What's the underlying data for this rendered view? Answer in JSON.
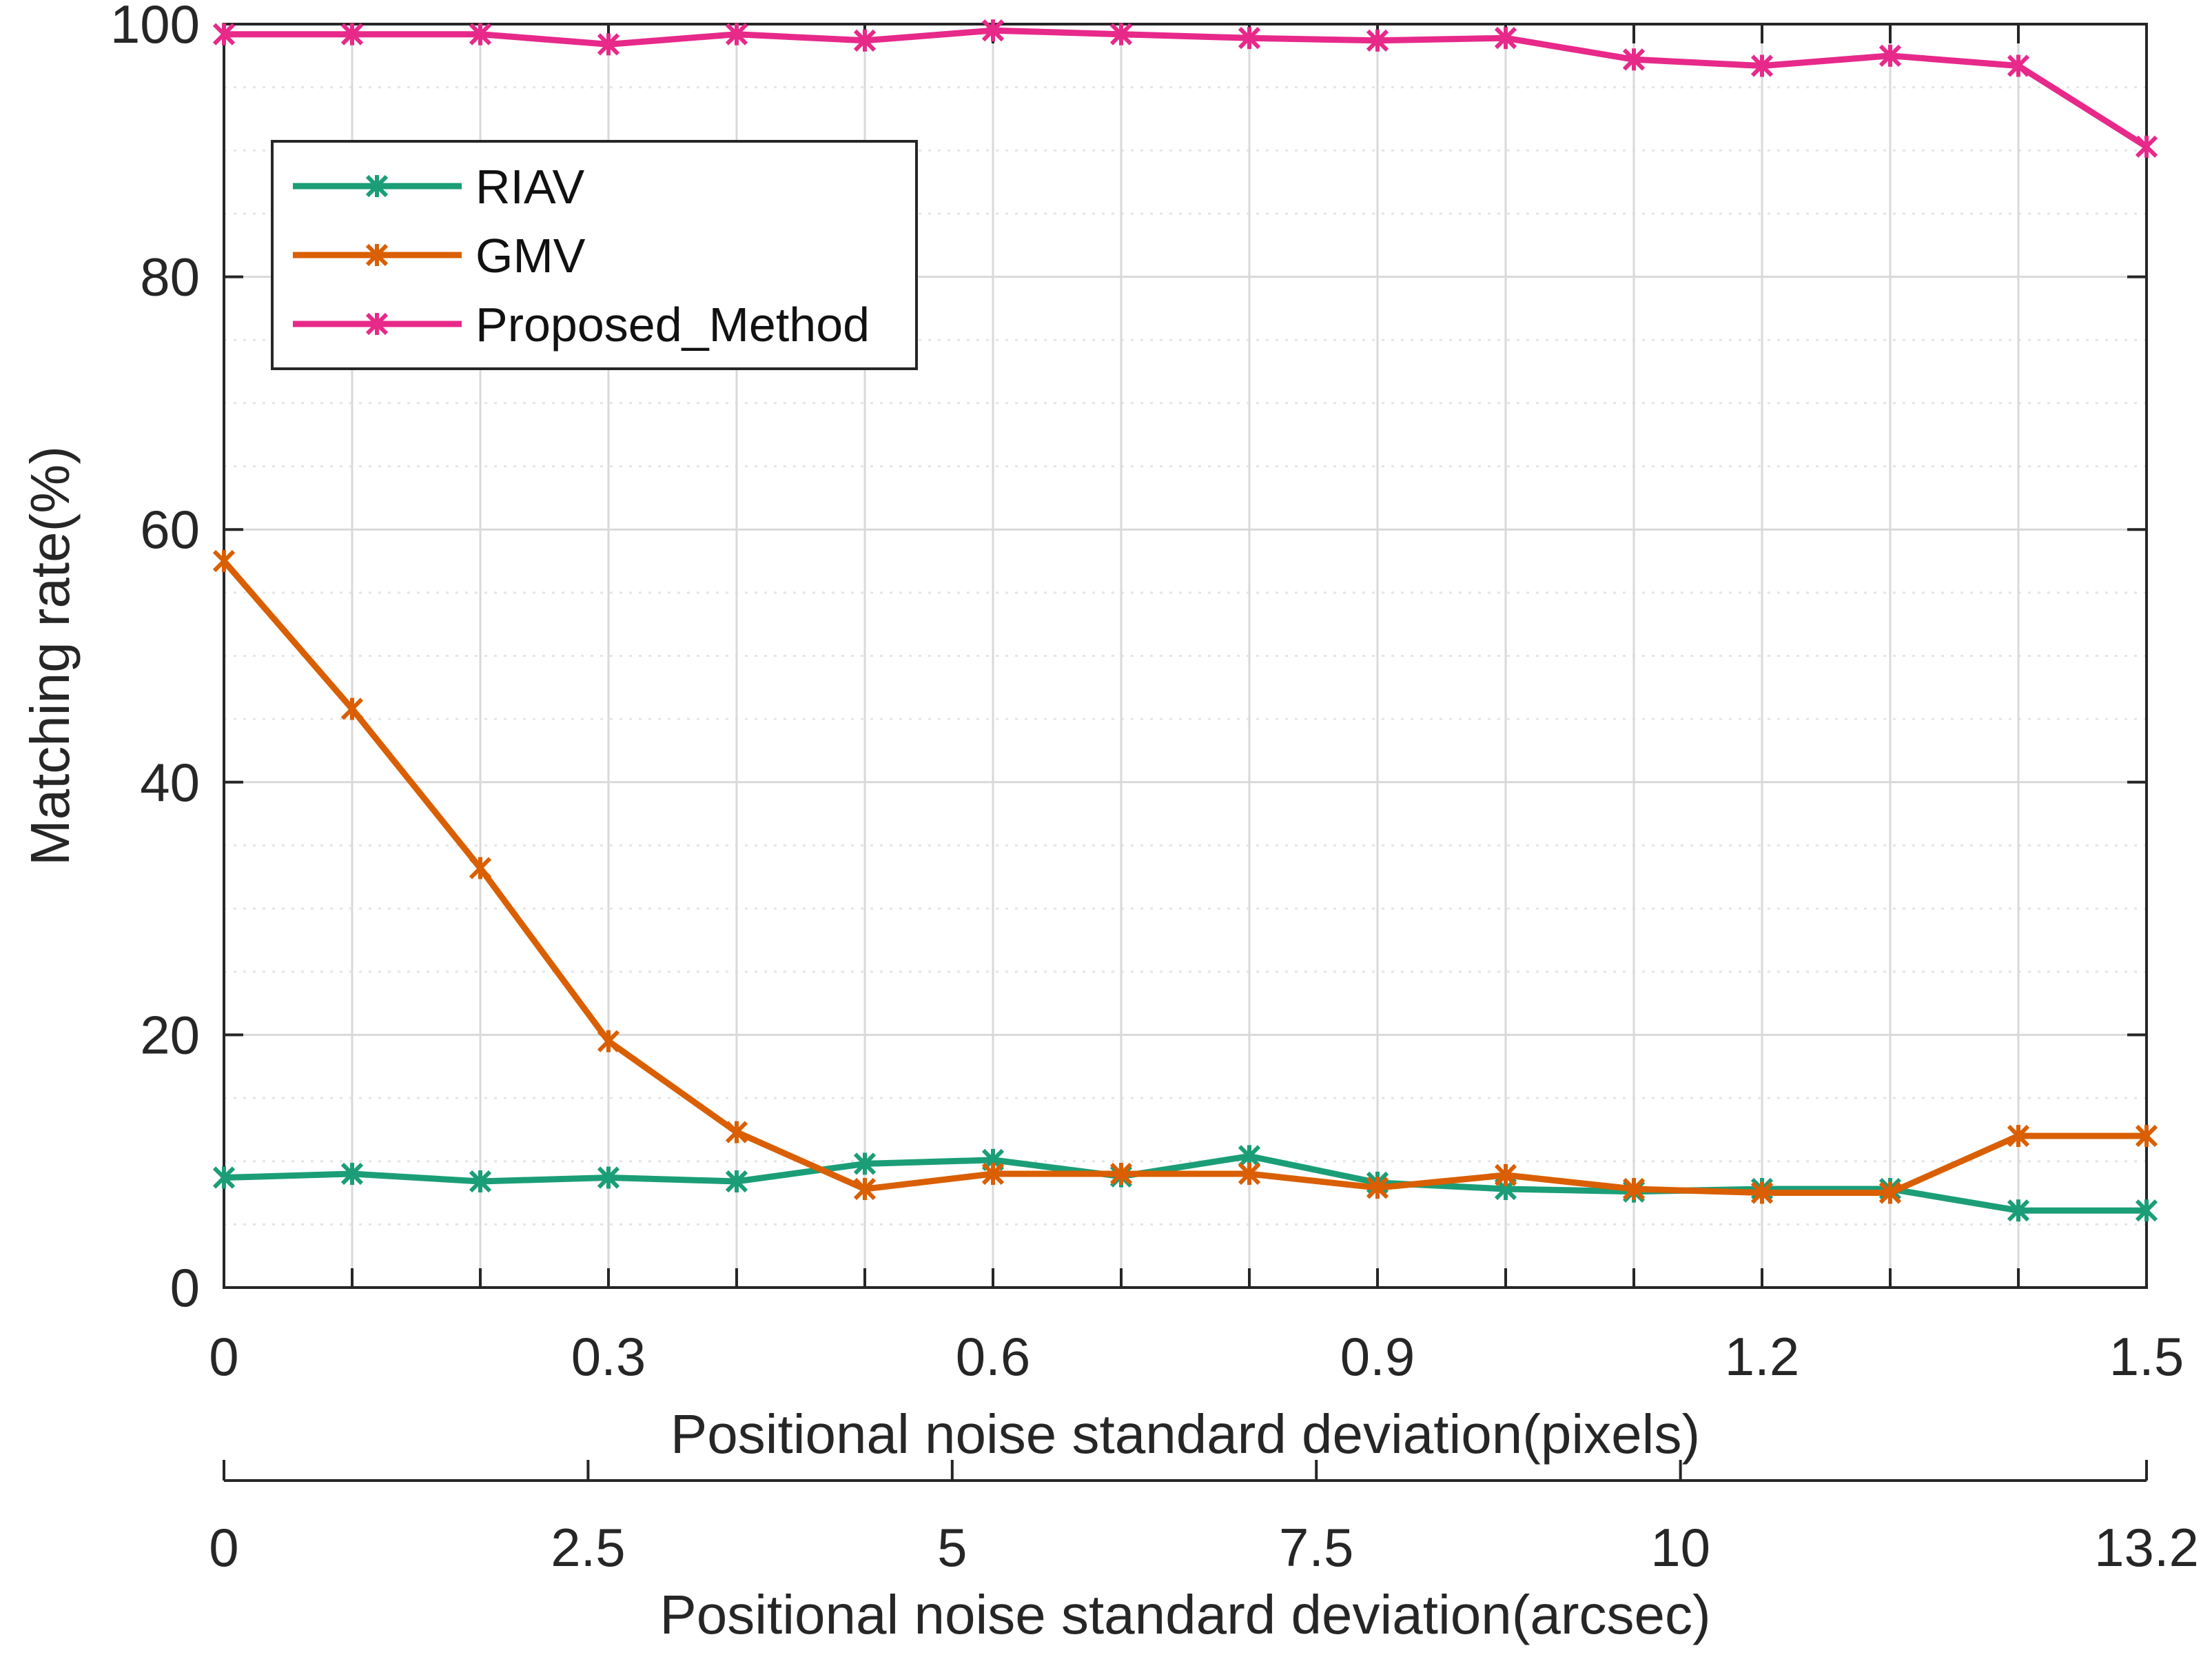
{
  "chart_data": {
    "type": "line",
    "title": "",
    "ylabel": "Matching rate(%)",
    "xlabel": "Positional noise standard deviation(pixels)",
    "secondary_xlabel": "Positional noise standard deviation(arcsec)",
    "x": [
      0,
      0.1,
      0.2,
      0.3,
      0.4,
      0.5,
      0.6,
      0.7,
      0.8,
      0.9,
      1.0,
      1.1,
      1.2,
      1.3,
      1.4,
      1.5
    ],
    "xlim": [
      0,
      1.5
    ],
    "ylim": [
      0,
      100
    ],
    "xticks": [
      0,
      0.3,
      0.6,
      0.9,
      1.2,
      1.5
    ],
    "xtick_labels": [
      "0",
      "0.3",
      "0.6",
      "0.9",
      "1.2",
      "1.5"
    ],
    "yticks": [
      0,
      20,
      40,
      60,
      80,
      100
    ],
    "ytick_labels": [
      "0",
      "20",
      "40",
      "60",
      "80",
      "100"
    ],
    "secondary_xlim": [
      0,
      13.2
    ],
    "secondary_xticks": [
      0,
      2.5,
      5,
      7.5,
      10,
      13.2
    ],
    "secondary_xtick_labels": [
      "0",
      "2.5",
      "5",
      "7.5",
      "10",
      "13.2"
    ],
    "grid": true,
    "legend_position": "upper-left",
    "series": [
      {
        "name": "RIAV",
        "color": "#1b9e77",
        "values": [
          8.7,
          9.0,
          8.4,
          8.7,
          8.4,
          9.8,
          10.1,
          8.8,
          10.4,
          8.3,
          7.8,
          7.6,
          7.8,
          7.8,
          6.1,
          6.1
        ]
      },
      {
        "name": "GMV",
        "color": "#d95f02",
        "values": [
          57.5,
          45.8,
          33.2,
          19.5,
          12.3,
          7.8,
          9.0,
          9.0,
          9.0,
          7.9,
          8.9,
          7.8,
          7.5,
          7.5,
          12.0,
          12.0
        ]
      },
      {
        "name": "Proposed_Method",
        "color": "#e7298a",
        "values": [
          99.2,
          99.2,
          99.2,
          98.4,
          99.2,
          98.7,
          99.5,
          99.2,
          98.9,
          98.7,
          98.9,
          97.2,
          96.7,
          97.5,
          96.7,
          90.3
        ]
      }
    ]
  },
  "colors": {
    "axis": "#262626",
    "major_grid": "#d9d9d9",
    "minor_grid": "#e5e5e5",
    "legend_border": "#262626"
  }
}
